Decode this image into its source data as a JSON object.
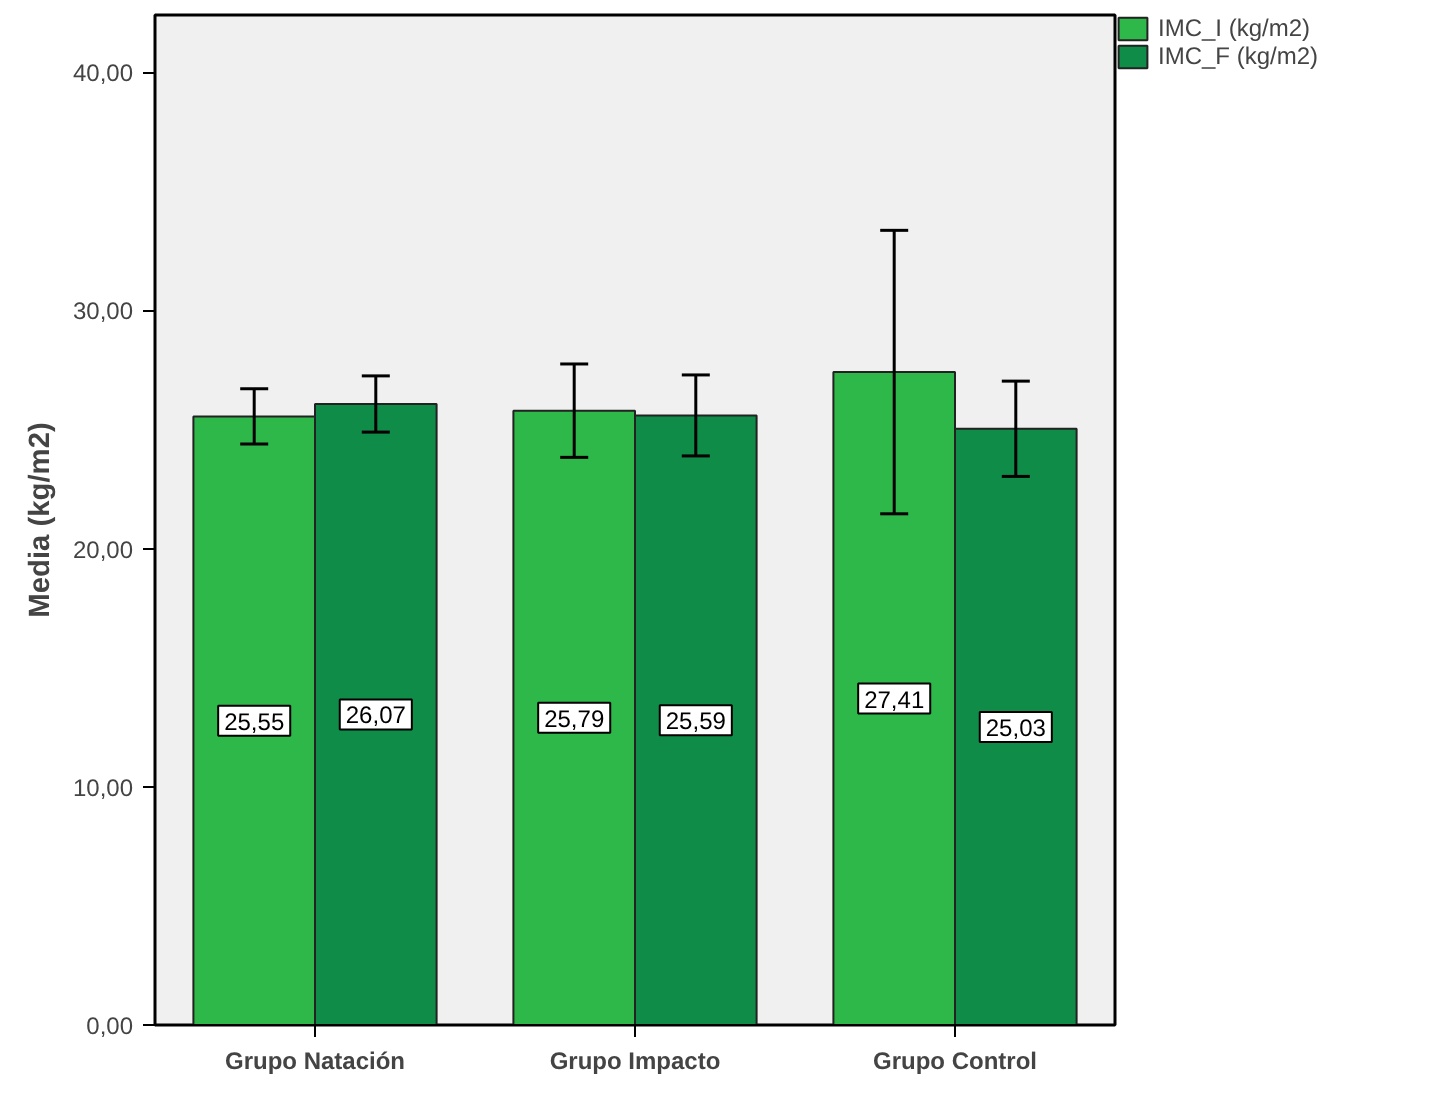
{
  "chart_data": {
    "type": "bar",
    "ylabel": "Media (kg/m2)",
    "categories": [
      "Grupo Natación",
      "Grupo Impacto",
      "Grupo Control"
    ],
    "series": [
      {
        "name": "IMC_I (kg/m2)",
        "color": "#2eb84a",
        "values": [
          25.55,
          25.79,
          27.41
        ],
        "errors": [
          1.16,
          1.96,
          5.95
        ]
      },
      {
        "name": "IMC_F (kg/m2)",
        "color": "#0f8c48",
        "values": [
          26.07,
          25.59,
          25.03
        ],
        "errors": [
          1.18,
          1.7,
          2.0
        ]
      }
    ],
    "ylim": [
      0,
      42.4
    ],
    "yticks": [
      {
        "value": 0,
        "label": "0,00"
      },
      {
        "value": 10,
        "label": "10,00"
      },
      {
        "value": 20,
        "label": "20,00"
      },
      {
        "value": 30,
        "label": "30,00"
      },
      {
        "value": 40,
        "label": "40,00"
      }
    ],
    "value_labels": [
      [
        "25,55",
        "25,79",
        "27,41"
      ],
      [
        "26,07",
        "25,59",
        "25,03"
      ]
    ],
    "grid": false,
    "legend": "top right"
  }
}
